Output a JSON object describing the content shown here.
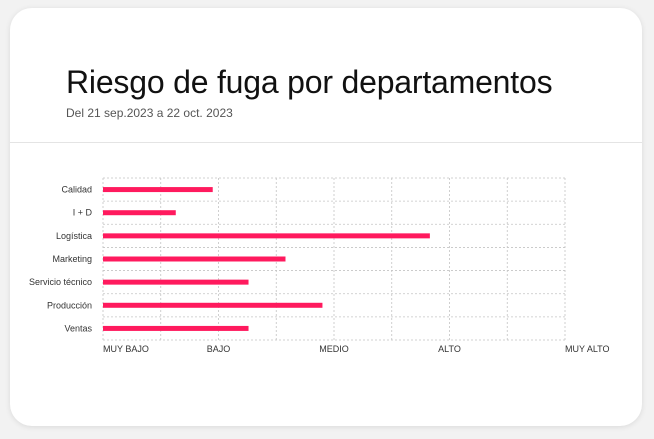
{
  "header": {
    "title": "Riesgo de fuga por departamentos",
    "subtitle": "Del 21 sep.2023 a 22 oct. 2023"
  },
  "colors": {
    "bar": "#ff1a5e",
    "grid": "#c4c4c4",
    "divider": "#e4e4e4"
  },
  "chart_data": {
    "type": "bar",
    "orientation": "horizontal",
    "categories": [
      "Calidad",
      "I + D",
      "Logística",
      "Marketing",
      "Servicio técnico",
      "Producción",
      "Ventas"
    ],
    "values": [
      0.95,
      0.63,
      2.83,
      1.58,
      1.26,
      1.9,
      1.26
    ],
    "xlim": [
      0,
      4
    ],
    "x_ticks": [
      {
        "value": 0,
        "label": "MUY BAJO"
      },
      {
        "value": 1,
        "label": "BAJO"
      },
      {
        "value": 2,
        "label": "MEDIO"
      },
      {
        "value": 3,
        "label": "ALTO"
      },
      {
        "value": 4,
        "label": "MUY ALTO"
      }
    ],
    "grid": true,
    "grid_style": "dashed",
    "legend": "none"
  }
}
